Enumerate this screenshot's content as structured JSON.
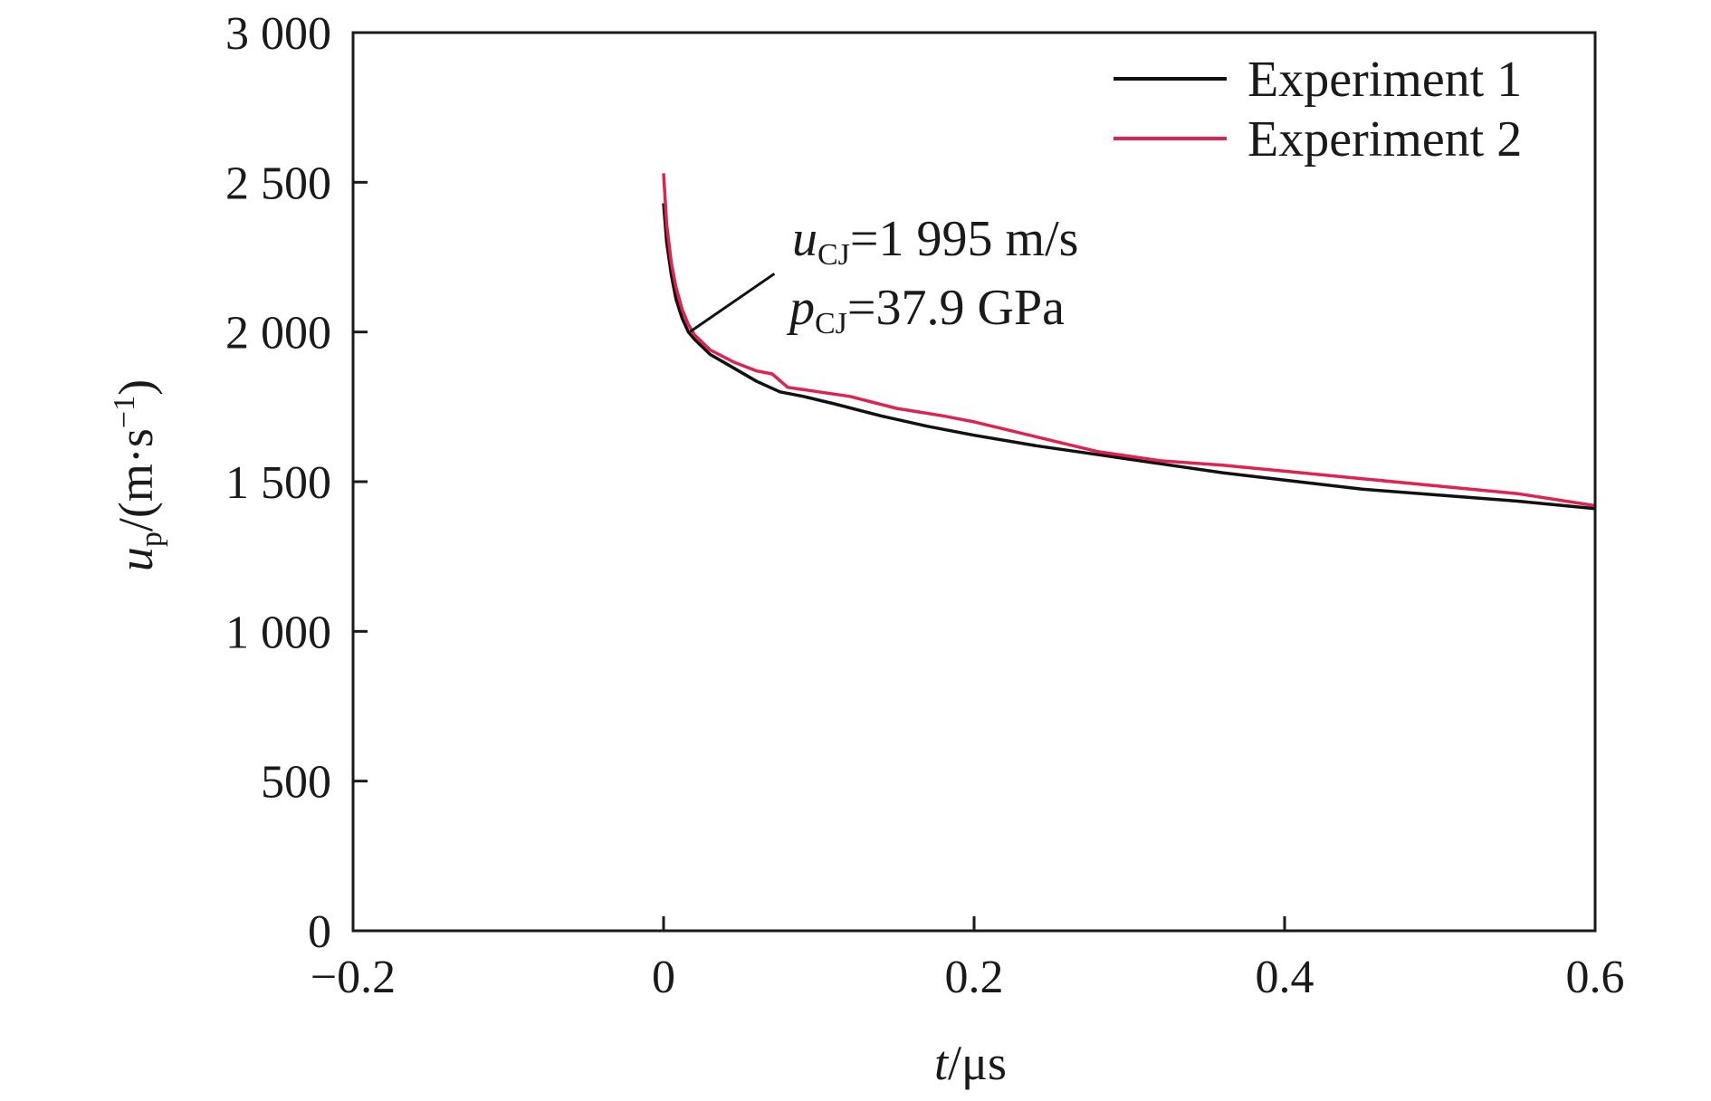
{
  "chart_data": {
    "type": "line",
    "xlabel": {
      "main": "t",
      "unit": "/μs"
    },
    "ylabel": {
      "main": "u",
      "sub": "p",
      "unit_pre": "/(m·s",
      "unit_sup": "−1",
      "unit_post": ")"
    },
    "xlim": [
      -0.2,
      0.6
    ],
    "ylim": [
      0,
      3000
    ],
    "xticks": [
      -0.2,
      0,
      0.2,
      0.4,
      0.6
    ],
    "xtick_labels": [
      "−0.2",
      "0",
      "0.2",
      "0.4",
      "0.6"
    ],
    "yticks": [
      0,
      500,
      1000,
      1500,
      2000,
      2500,
      3000
    ],
    "ytick_labels": [
      "0",
      "500",
      "1 000",
      "1 500",
      "2 000",
      "2 500",
      "3 000"
    ],
    "grid": false,
    "legend_position": "top-right",
    "series": [
      {
        "name": "Experiment 1",
        "color": "#111111",
        "x": [
          0.0,
          0.002,
          0.005,
          0.008,
          0.012,
          0.016,
          0.02,
          0.03,
          0.045,
          0.06,
          0.075,
          0.09,
          0.11,
          0.14,
          0.17,
          0.2,
          0.24,
          0.28,
          0.32,
          0.36,
          0.4,
          0.45,
          0.5,
          0.55,
          0.6
        ],
        "y": [
          2430,
          2300,
          2190,
          2110,
          2045,
          2000,
          1975,
          1925,
          1880,
          1835,
          1800,
          1785,
          1760,
          1720,
          1685,
          1655,
          1620,
          1590,
          1560,
          1530,
          1505,
          1475,
          1455,
          1435,
          1410
        ]
      },
      {
        "name": "Experiment 2",
        "color": "#e0224f",
        "x": [
          0.0,
          0.002,
          0.005,
          0.008,
          0.012,
          0.016,
          0.02,
          0.03,
          0.045,
          0.06,
          0.07,
          0.08,
          0.1,
          0.12,
          0.15,
          0.18,
          0.2,
          0.24,
          0.28,
          0.32,
          0.36,
          0.4,
          0.45,
          0.5,
          0.55,
          0.6
        ],
        "y": [
          2530,
          2360,
          2230,
          2150,
          2075,
          2025,
          1990,
          1940,
          1900,
          1870,
          1860,
          1815,
          1800,
          1785,
          1745,
          1720,
          1700,
          1650,
          1600,
          1570,
          1555,
          1535,
          1510,
          1485,
          1460,
          1420
        ]
      }
    ],
    "annotation": {
      "u_main": "u",
      "u_sub": "CJ",
      "u_value": "=1 995 m/s",
      "p_main": "p",
      "p_sub": "CJ",
      "p_value": "=37.9 GPa",
      "point_x": 0.016,
      "point_y": 1995
    }
  }
}
